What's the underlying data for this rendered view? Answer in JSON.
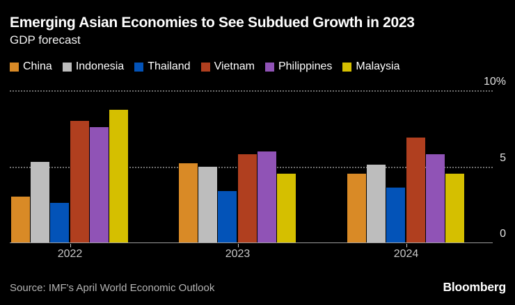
{
  "header": {
    "title": "Emerging Asian Economies to See Subdued Growth in 2023",
    "subtitle": "GDP forecast"
  },
  "footer": {
    "source": "Source: IMF's April World Economic Outlook",
    "brand": "Bloomberg"
  },
  "colors": {
    "background": "#000000",
    "title_text": "#ffffff",
    "gridline": "#6f6f6f",
    "baseline": "#9c9c9c",
    "axis_label_text": "#e3e3e3",
    "tick_label_text": "#c9c9c9",
    "source_text": "#b5b5b5"
  },
  "chart_data": {
    "type": "bar",
    "title": "Emerging Asian Economies to See Subdued Growth in 2023",
    "subtitle": "GDP forecast",
    "categories": [
      "2022",
      "2023",
      "2024"
    ],
    "series": [
      {
        "name": "China",
        "color": "#D98A26",
        "values": [
          3.0,
          5.2,
          4.5
        ]
      },
      {
        "name": "Indonesia",
        "color": "#BDBDBD",
        "values": [
          5.3,
          5.0,
          5.1
        ]
      },
      {
        "name": "Thailand",
        "color": "#0353B8",
        "values": [
          2.6,
          3.4,
          3.6
        ]
      },
      {
        "name": "Vietnam",
        "color": "#B03F1F",
        "values": [
          8.0,
          5.8,
          6.9
        ]
      },
      {
        "name": "Philippines",
        "color": "#9053B6",
        "values": [
          7.6,
          6.0,
          5.8
        ]
      },
      {
        "name": "Malaysia",
        "color": "#D5BF00",
        "values": [
          8.7,
          4.5,
          4.5
        ]
      }
    ],
    "xlabel": "",
    "ylabel": "",
    "ylim": [
      0,
      10
    ],
    "y_ticks": [
      {
        "value": 0,
        "label": "0"
      },
      {
        "value": 5,
        "label": "5"
      },
      {
        "value": 10,
        "label": "10%"
      }
    ],
    "grid": "horizontal-dotted",
    "legend_position": "top"
  }
}
